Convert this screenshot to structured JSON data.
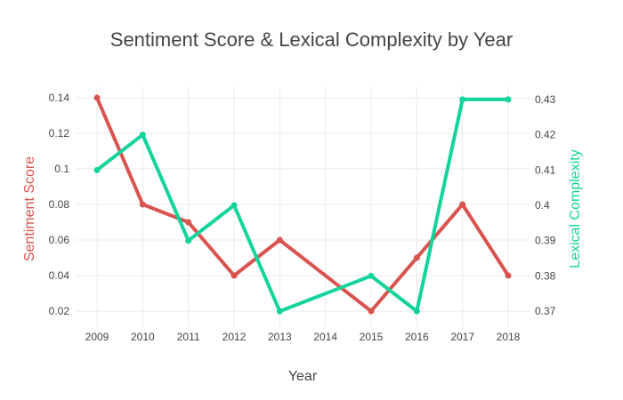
{
  "chart_data": {
    "type": "line",
    "title": "Sentiment Score & Lexical Complexity by Year",
    "xlabel": "Year",
    "ylabel_left": "Sentiment Score",
    "ylabel_right": "Lexical Complexity",
    "x": [
      "2009",
      "2010",
      "2011",
      "2012",
      "2013",
      "2014",
      "2015",
      "2016",
      "2017",
      "2018"
    ],
    "x_ticks": [
      "2009",
      "2010",
      "2011",
      "2012",
      "2013",
      "2014",
      "2015",
      "2016",
      "2017",
      "2018"
    ],
    "y_left_ticks": [
      "0.02",
      "0.04",
      "0.06",
      "0.08",
      "0.1",
      "0.12",
      "0.14"
    ],
    "y_right_ticks": [
      "0.37",
      "0.38",
      "0.39",
      "0.4",
      "0.41",
      "0.42",
      "0.43"
    ],
    "ylim_left": [
      0.011,
      0.146
    ],
    "ylim_right": [
      0.3655,
      0.4335
    ],
    "grid": true,
    "legend": "none",
    "series": [
      {
        "axis": "left",
        "color": "#d9534f",
        "x": [
          "2009",
          "2010",
          "2011",
          "2012",
          "2013",
          "2015",
          "2016",
          "2017",
          "2018"
        ],
        "values": [
          0.14,
          0.08,
          0.07,
          0.04,
          0.06,
          0.02,
          0.05,
          0.08,
          0.04
        ]
      },
      {
        "axis": "right",
        "color": "#13d49a",
        "x": [
          "2009",
          "2010",
          "2011",
          "2012",
          "2013",
          "2015",
          "2016",
          "2017",
          "2018"
        ],
        "values": [
          0.41,
          0.42,
          0.39,
          0.4,
          0.37,
          0.38,
          0.37,
          0.43,
          0.43
        ]
      }
    ]
  }
}
